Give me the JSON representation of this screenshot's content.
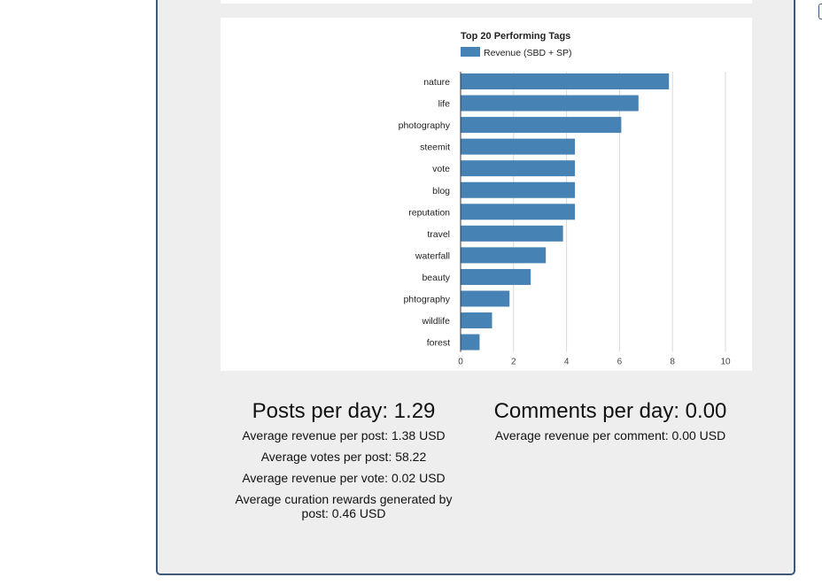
{
  "chart_data": {
    "type": "bar",
    "orientation": "horizontal",
    "title": "Top 20 Performing Tags",
    "series": [
      {
        "name": "Revenue (SBD + SP)",
        "color": "#4682b4",
        "values": [
          7.85,
          6.7,
          6.05,
          4.3,
          4.3,
          4.3,
          4.3,
          3.85,
          3.2,
          2.63,
          1.83,
          1.17,
          0.7
        ]
      }
    ],
    "categories": [
      "nature",
      "life",
      "photography",
      "steemit",
      "vote",
      "blog",
      "reputation",
      "travel",
      "waterfall",
      "beauty",
      "phtography",
      "wildlife",
      "forest"
    ],
    "xlim": [
      0,
      10
    ],
    "xticks": [
      0,
      2,
      4,
      6,
      8,
      10
    ],
    "grid": true,
    "legend": "top-left"
  },
  "stats": {
    "posts": {
      "heading": "Posts per day: 1.29",
      "lines": [
        "Average revenue per post: 1.38 USD",
        "Average votes per post: 58.22",
        "Average revenue per vote: 0.02 USD",
        "Average curation rewards generated by post: 0.46 USD"
      ]
    },
    "comments": {
      "heading": "Comments per day: 0.00",
      "lines": [
        "Average revenue per comment: 0.00 USD"
      ]
    }
  }
}
